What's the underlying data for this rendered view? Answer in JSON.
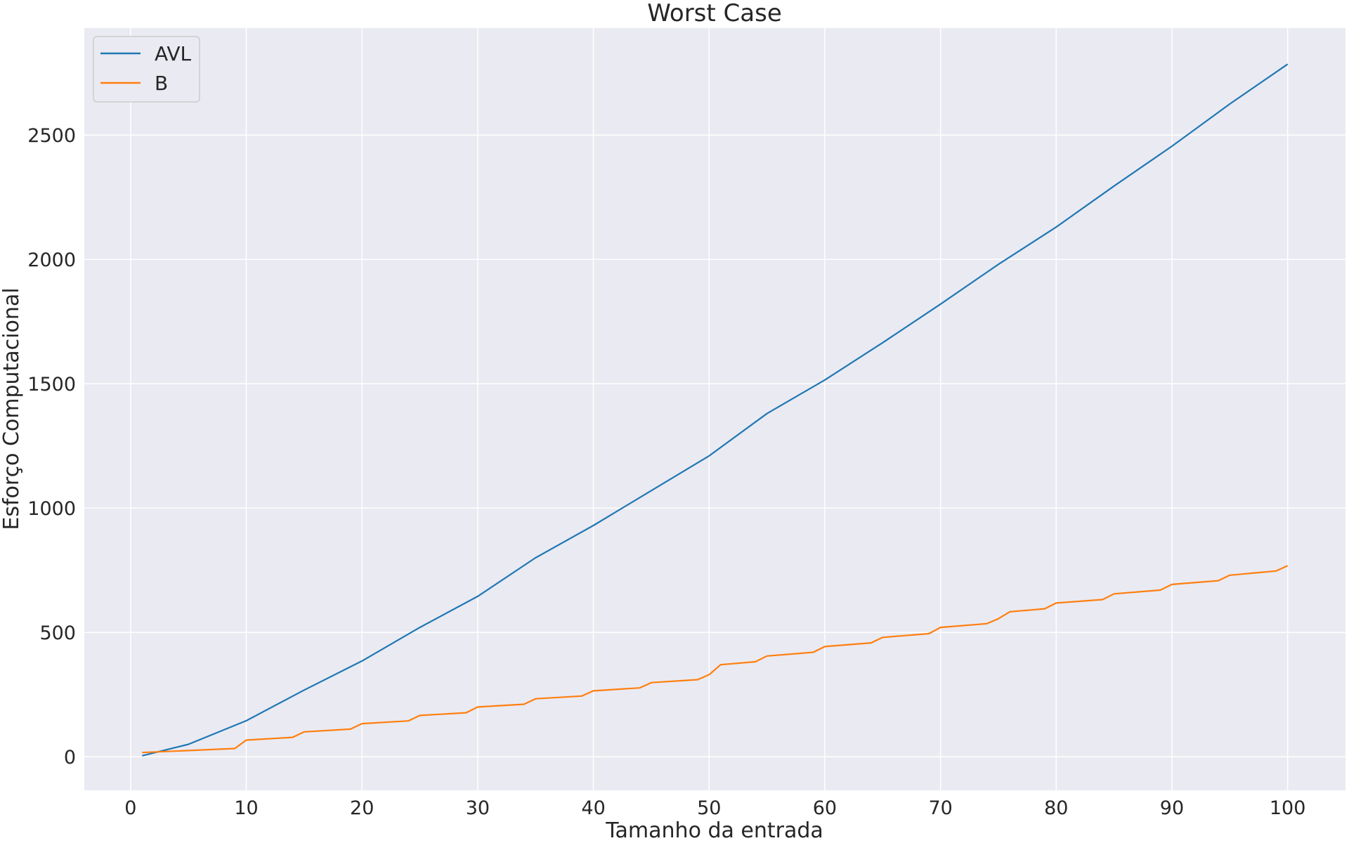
{
  "chart_data": {
    "type": "line",
    "title": "Worst Case",
    "xlabel": "Tamanho da entrada",
    "ylabel": "Esforço Computacional",
    "xlim": [
      -4,
      105
    ],
    "ylim": [
      -135,
      2930
    ],
    "xticks": [
      0,
      10,
      20,
      30,
      40,
      50,
      60,
      70,
      80,
      90,
      100
    ],
    "yticks": [
      0,
      500,
      1000,
      1500,
      2000,
      2500
    ],
    "grid": true,
    "legend_position": "top-left",
    "series": [
      {
        "name": "AVL",
        "color": "#1f77b4",
        "x": [
          1,
          5,
          10,
          15,
          20,
          25,
          30,
          35,
          40,
          45,
          50,
          55,
          60,
          65,
          70,
          75,
          80,
          85,
          90,
          95,
          100
        ],
        "y": [
          4,
          50,
          145,
          268,
          385,
          520,
          645,
          800,
          930,
          1070,
          1210,
          1380,
          1515,
          1665,
          1820,
          1980,
          2130,
          2295,
          2455,
          2625,
          2785
        ]
      },
      {
        "name": "B",
        "color": "#ff7f0e",
        "x": [
          1,
          9,
          10,
          14,
          15,
          19,
          20,
          24,
          25,
          29,
          30,
          34,
          35,
          39,
          40,
          44,
          45,
          49,
          50,
          51,
          54,
          55,
          59,
          60,
          64,
          65,
          69,
          70,
          74,
          75,
          76,
          79,
          80,
          84,
          85,
          89,
          90,
          94,
          95,
          99,
          100
        ],
        "y": [
          17,
          33,
          67,
          78,
          100,
          111,
          133,
          144,
          166,
          177,
          200,
          211,
          233,
          244,
          265,
          277,
          298,
          310,
          330,
          370,
          382,
          405,
          420,
          443,
          458,
          480,
          495,
          520,
          535,
          555,
          583,
          595,
          618,
          632,
          655,
          670,
          693,
          708,
          730,
          747,
          768
        ]
      }
    ]
  }
}
